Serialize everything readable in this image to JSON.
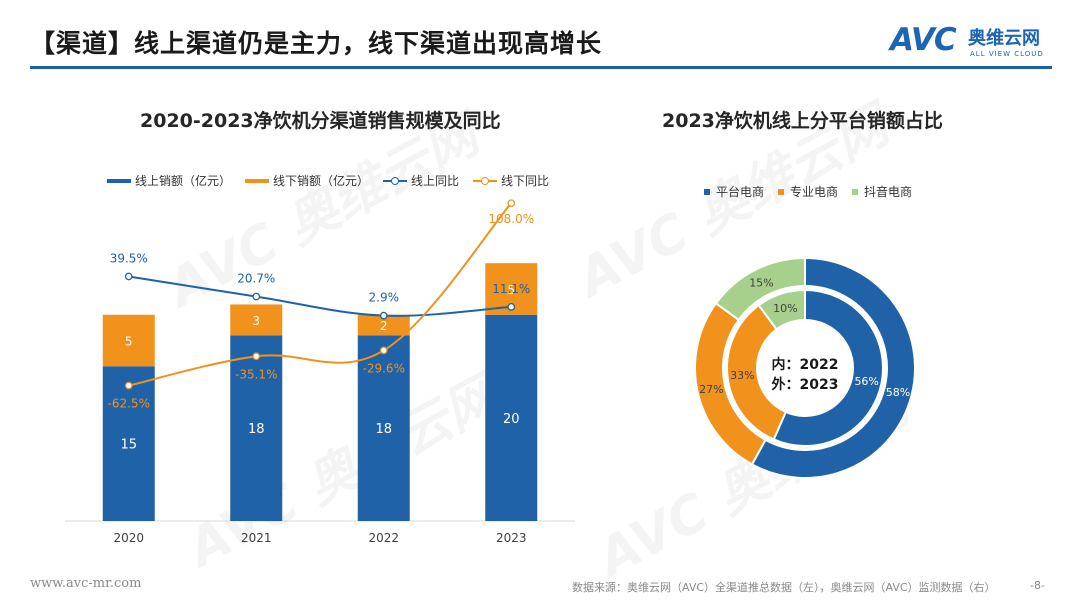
{
  "header": {
    "title": "【渠道】线上渠道仍是主力，线下渠道出现高增长",
    "logo_mark": "AVC",
    "logo_cn": "奥维云网",
    "logo_en": "ALL VIEW CLOUD"
  },
  "watermark": {
    "text": "AVC 奥维云网"
  },
  "colors": {
    "blue": "#2062a8",
    "orange": "#f0921c",
    "green": "#a8d08d",
    "title_rule": "#1f5fa8"
  },
  "chart_data": [
    {
      "type": "bar",
      "title": "2020-2023净饮机分渠道销售规模及同比",
      "categories": [
        "2020",
        "2021",
        "2022",
        "2023"
      ],
      "series": [
        {
          "name": "线上销额（亿元）",
          "kind": "stacked-bar",
          "values": [
            15,
            18,
            18,
            20
          ],
          "labels": [
            "15",
            "18",
            "18",
            "20"
          ]
        },
        {
          "name": "线下销额（亿元）",
          "kind": "stacked-bar",
          "values": [
            5,
            3,
            2,
            5
          ],
          "labels": [
            "5",
            "3",
            "2",
            "5"
          ]
        },
        {
          "name": "线上同比",
          "kind": "line",
          "values": [
            39.5,
            20.7,
            2.9,
            11.1
          ],
          "labels": [
            "39.5%",
            "20.7%",
            "2.9%",
            "11.1%"
          ]
        },
        {
          "name": "线下同比",
          "kind": "line",
          "values": [
            -62.5,
            -35.1,
            -29.6,
            108.0
          ],
          "labels": [
            "-62.5%",
            "-35.1%",
            "-29.6%",
            "108.0%"
          ]
        }
      ],
      "ylim_bar": [
        0,
        32
      ],
      "ylim_line": [
        -90,
        125
      ]
    },
    {
      "type": "pie",
      "title": "2023净饮机线上分平台销额占比",
      "legend": [
        "平台电商",
        "专业电商",
        "抖音电商"
      ],
      "inner": {
        "label": "内：2022",
        "values": [
          56,
          33,
          10
        ],
        "labels": [
          "56%",
          "33%",
          "10%"
        ]
      },
      "outer": {
        "label": "外：2023",
        "values": [
          58,
          27,
          15
        ],
        "labels": [
          "58%",
          "27%",
          "15%"
        ]
      }
    }
  ],
  "footer": {
    "url": "www.avc-mr.com",
    "source": "数据来源：奥维云网（AVC）全渠道推总数据（左），奥维云网（AVC）监测数据（右）",
    "page": "-8-"
  }
}
